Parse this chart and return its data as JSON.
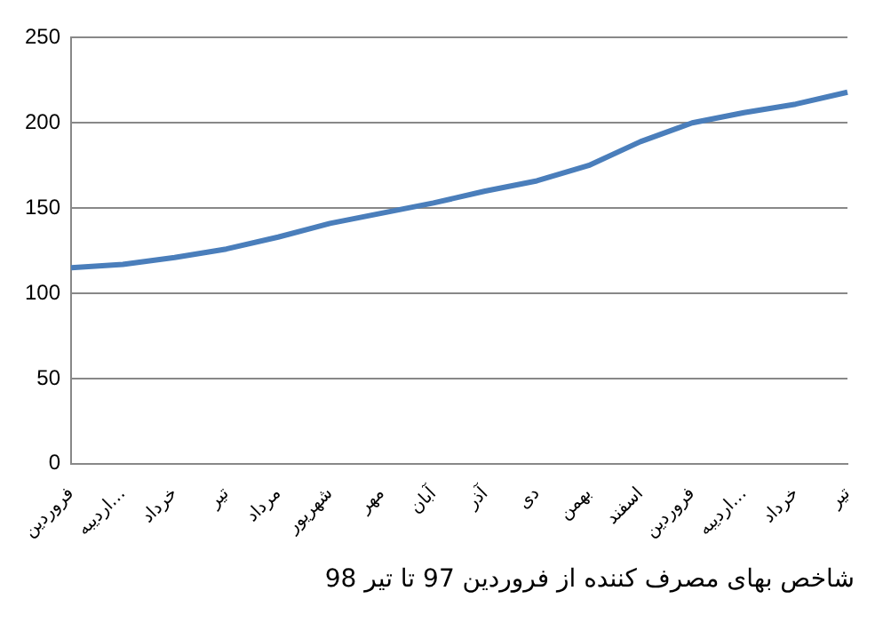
{
  "chart_data": {
    "type": "line",
    "categories": [
      "فروردین",
      "اردیبه…",
      "خرداد",
      "تیر",
      "مرداد",
      "شهریور",
      "مهر",
      "آبان",
      "آذر",
      "دی",
      "بهمن",
      "اسفند",
      "فروردین",
      "اردیبه…",
      "خرداد",
      "تیر"
    ],
    "series": [
      {
        "color": "#4a7ebb",
        "values": [
          115,
          117,
          121,
          126,
          133,
          141,
          147,
          153,
          160,
          166,
          175,
          189,
          200,
          206,
          211,
          218
        ]
      }
    ],
    "ylim": [
      0,
      250
    ],
    "yticks": [
      0,
      50,
      100,
      150,
      200,
      250
    ],
    "grid": "y",
    "legend": false,
    "marker": "none",
    "line_style": "solid",
    "annotations": [
      "شاخص بهای مصرف کننده از فروردین 97 تا تیر 98"
    ]
  }
}
